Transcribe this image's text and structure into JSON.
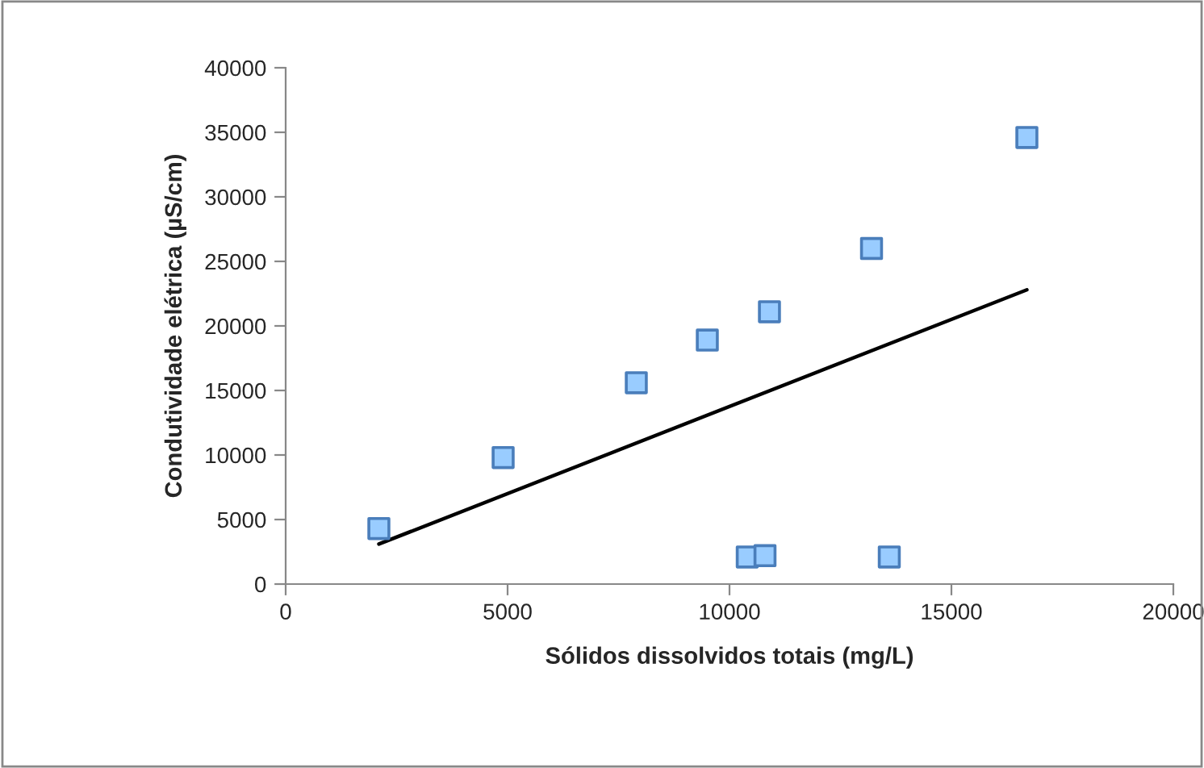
{
  "chart_data": {
    "type": "scatter",
    "xlabel": "Sólidos dissolvidos totais (mg/L)",
    "ylabel": "Condutividade elétrica (µS/cm)",
    "xlim": [
      0,
      20000
    ],
    "xticks": [
      0,
      5000,
      10000,
      15000,
      20000
    ],
    "ylim": [
      0,
      40000
    ],
    "yticks": [
      0,
      5000,
      10000,
      15000,
      20000,
      25000,
      30000,
      35000,
      40000
    ],
    "grid": false,
    "legend": false,
    "series": [
      {
        "color": "#99ccff",
        "marker": "square",
        "x": [
          2100,
          4900,
          7900,
          9500,
          10900,
          13200,
          16700,
          10400,
          10800,
          13600
        ],
        "values": [
          4300,
          9800,
          15600,
          18900,
          21100,
          26000,
          34600,
          2100,
          2200,
          2100
        ]
      },
      {
        "type": "line",
        "color": "#000000",
        "marker": "none",
        "line_style": "solid",
        "x": [
          2100,
          16700
        ],
        "values": [
          3100,
          22800
        ]
      }
    ]
  }
}
